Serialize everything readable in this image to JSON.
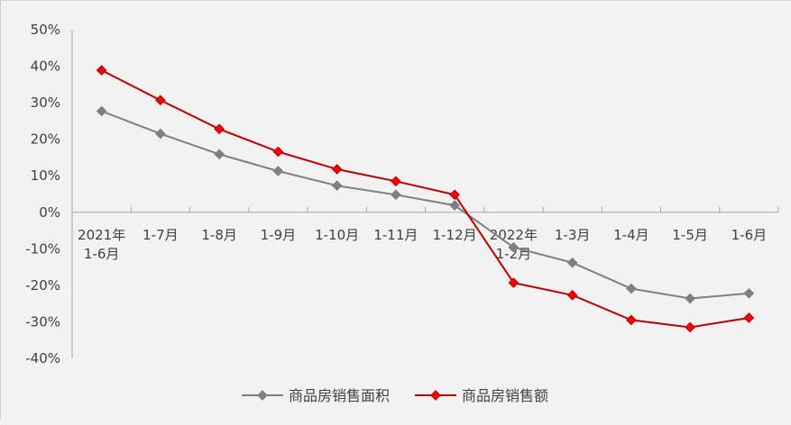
{
  "chart_data": {
    "type": "line",
    "categories": [
      [
        "2021年",
        "1-6月"
      ],
      [
        "1-7月"
      ],
      [
        "1-8月"
      ],
      [
        "1-9月"
      ],
      [
        "1-10月"
      ],
      [
        "1-11月"
      ],
      [
        "1-12月"
      ],
      [
        "2022年",
        "1-2月"
      ],
      [
        "1-3月"
      ],
      [
        "1-4月"
      ],
      [
        "1-5月"
      ],
      [
        "1-6月"
      ]
    ],
    "series": [
      {
        "name": "商品房销售面积",
        "color": "#7f7f7f",
        "marker": "diamond",
        "values": [
          27.7,
          21.5,
          15.9,
          11.3,
          7.3,
          4.8,
          1.9,
          -9.6,
          -13.8,
          -20.9,
          -23.6,
          -22.2
        ]
      },
      {
        "name": "商品房销售额",
        "color": "#c00000",
        "marker_fill": "#ff0000",
        "marker": "diamond",
        "values": [
          38.9,
          30.7,
          22.8,
          16.6,
          11.8,
          8.5,
          4.8,
          -19.3,
          -22.7,
          -29.5,
          -31.5,
          -28.9
        ]
      }
    ],
    "y_ticks": [
      "50%",
      "40%",
      "30%",
      "20%",
      "10%",
      "0%",
      "-10%",
      "-20%",
      "-30%",
      "-40%"
    ],
    "ylim": [
      -40,
      50
    ],
    "grid": false,
    "legend_position": "bottom",
    "title": "",
    "xlabel": "",
    "ylabel": ""
  }
}
